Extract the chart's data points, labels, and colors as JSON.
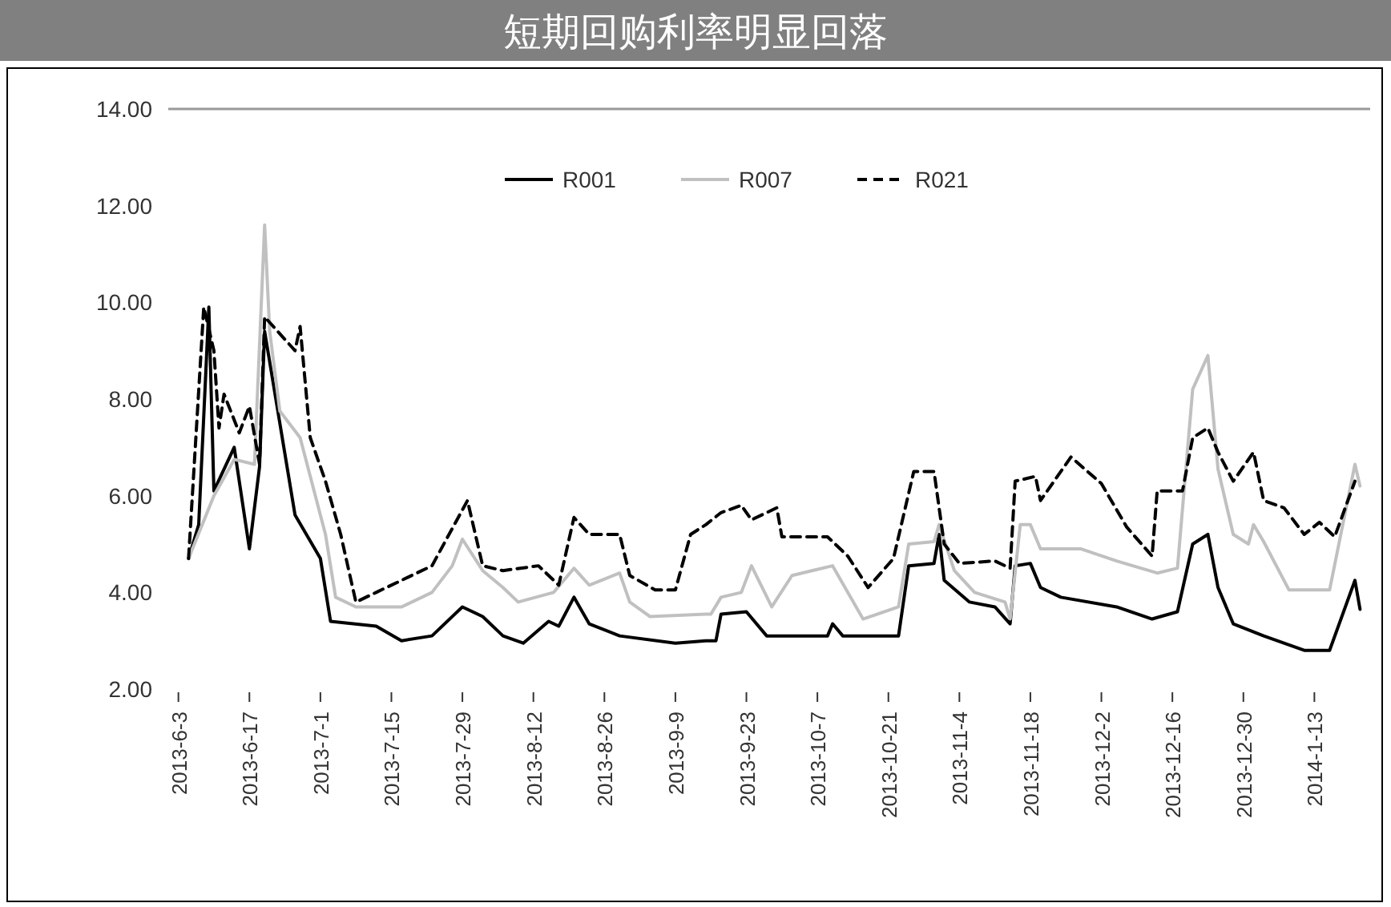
{
  "chart_data": {
    "type": "line",
    "title": "短期回购利率明显回落",
    "legend": "top",
    "grid": false,
    "xlim": [
      "2013-06-01",
      "2014-01-24"
    ],
    "xticks": [
      {
        "value": "2013-06-03",
        "label": "2013-6-3"
      },
      {
        "value": "2013-06-17",
        "label": "2013-6-17"
      },
      {
        "value": "2013-07-01",
        "label": "2013-7-1"
      },
      {
        "value": "2013-07-15",
        "label": "2013-7-15"
      },
      {
        "value": "2013-07-29",
        "label": "2013-7-29"
      },
      {
        "value": "2013-08-12",
        "label": "2013-8-12"
      },
      {
        "value": "2013-08-26",
        "label": "2013-8-26"
      },
      {
        "value": "2013-09-09",
        "label": "2013-9-9"
      },
      {
        "value": "2013-09-23",
        "label": "2013-9-23"
      },
      {
        "value": "2013-10-07",
        "label": "2013-10-7"
      },
      {
        "value": "2013-10-21",
        "label": "2013-10-21"
      },
      {
        "value": "2013-11-04",
        "label": "2013-11-4"
      },
      {
        "value": "2013-11-18",
        "label": "2013-11-18"
      },
      {
        "value": "2013-12-02",
        "label": "2013-12-2"
      },
      {
        "value": "2013-12-16",
        "label": "2013-12-16"
      },
      {
        "value": "2013-12-30",
        "label": "2013-12-30"
      },
      {
        "value": "2014-01-13",
        "label": "2014-1-13"
      }
    ],
    "ylim": [
      2,
      14
    ],
    "yticks": [
      {
        "value": 2,
        "label": "2.00"
      },
      {
        "value": 4,
        "label": "4.00"
      },
      {
        "value": 6,
        "label": "6.00"
      },
      {
        "value": 8,
        "label": "8.00"
      },
      {
        "value": 10,
        "label": "10.00"
      },
      {
        "value": 12,
        "label": "12.00"
      },
      {
        "value": 14,
        "label": "14.00"
      }
    ],
    "series": [
      {
        "name": "R001",
        "color": "#000000",
        "line_style": "solid",
        "x": [
          "2013-06-05",
          "2013-06-07",
          "2013-06-09",
          "2013-06-10",
          "2013-06-14",
          "2013-06-17",
          "2013-06-19",
          "2013-06-20",
          "2013-06-26",
          "2013-07-01",
          "2013-07-03",
          "2013-07-12",
          "2013-07-17",
          "2013-07-23",
          "2013-07-29",
          "2013-08-02",
          "2013-08-06",
          "2013-08-10",
          "2013-08-15",
          "2013-08-17",
          "2013-08-20",
          "2013-08-23",
          "2013-08-29",
          "2013-09-09",
          "2013-09-15",
          "2013-09-17",
          "2013-09-18",
          "2013-09-23",
          "2013-09-27",
          "2013-10-09",
          "2013-10-10",
          "2013-10-12",
          "2013-10-23",
          "2013-10-25",
          "2013-10-30",
          "2013-10-31",
          "2013-11-01",
          "2013-11-06",
          "2013-11-11",
          "2013-11-14",
          "2013-11-15",
          "2013-11-18",
          "2013-11-20",
          "2013-11-24",
          "2013-12-05",
          "2013-12-12",
          "2013-12-17",
          "2013-12-20",
          "2013-12-23",
          "2013-12-25",
          "2013-12-28",
          "2014-01-03",
          "2014-01-11",
          "2014-01-16",
          "2014-01-21",
          "2014-01-22"
        ],
        "values": [
          4.7,
          5.4,
          9.9,
          6.1,
          7.0,
          4.9,
          6.6,
          9.4,
          5.6,
          4.7,
          3.4,
          3.3,
          3.0,
          3.1,
          3.7,
          3.5,
          3.1,
          2.95,
          3.4,
          3.3,
          3.9,
          3.35,
          3.1,
          2.95,
          3.0,
          3.0,
          3.55,
          3.6,
          3.1,
          3.1,
          3.35,
          3.1,
          3.1,
          4.55,
          4.6,
          5.2,
          4.25,
          3.8,
          3.7,
          3.35,
          4.55,
          4.6,
          4.1,
          3.9,
          3.7,
          3.45,
          3.6,
          5.0,
          5.2,
          4.1,
          3.35,
          3.1,
          2.8,
          2.8,
          4.25,
          3.65
        ]
      },
      {
        "name": "R007",
        "color": "#c0c0c0",
        "line_style": "solid",
        "x": [
          "2013-06-05",
          "2013-06-10",
          "2013-06-14",
          "2013-06-18",
          "2013-06-20",
          "2013-06-21",
          "2013-06-23",
          "2013-06-27",
          "2013-07-02",
          "2013-07-04",
          "2013-07-08",
          "2013-07-17",
          "2013-07-23",
          "2013-07-27",
          "2013-07-29",
          "2013-08-02",
          "2013-08-06",
          "2013-08-09",
          "2013-08-16",
          "2013-08-20",
          "2013-08-23",
          "2013-08-29",
          "2013-08-31",
          "2013-09-04",
          "2013-09-15",
          "2013-09-16",
          "2013-09-18",
          "2013-09-22",
          "2013-09-24",
          "2013-09-28",
          "2013-10-02",
          "2013-10-10",
          "2013-10-16",
          "2013-10-23",
          "2013-10-25",
          "2013-10-30",
          "2013-10-31",
          "2013-11-03",
          "2013-11-07",
          "2013-11-13",
          "2013-11-14",
          "2013-11-16",
          "2013-11-18",
          "2013-11-20",
          "2013-11-28",
          "2013-12-05",
          "2013-12-13",
          "2013-12-17",
          "2013-12-20",
          "2013-12-23",
          "2013-12-25",
          "2013-12-28",
          "2013-12-31",
          "2014-01-01",
          "2014-01-03",
          "2014-01-08",
          "2014-01-16",
          "2014-01-21",
          "2014-01-22"
        ],
        "values": [
          4.7,
          6.0,
          6.75,
          6.65,
          11.6,
          9.4,
          7.75,
          7.2,
          5.2,
          3.9,
          3.7,
          3.7,
          4.0,
          4.55,
          5.1,
          4.45,
          4.1,
          3.8,
          4.0,
          4.5,
          4.15,
          4.4,
          3.8,
          3.5,
          3.55,
          3.55,
          3.9,
          4.0,
          4.55,
          3.7,
          4.35,
          4.55,
          3.45,
          3.7,
          5.0,
          5.05,
          5.4,
          4.45,
          4.0,
          3.8,
          3.45,
          5.4,
          5.4,
          4.9,
          4.9,
          4.65,
          4.4,
          4.5,
          8.2,
          8.9,
          6.55,
          5.2,
          5.0,
          5.4,
          5.05,
          4.05,
          4.05,
          6.65,
          6.2
        ]
      },
      {
        "name": "R021",
        "color": "#000000",
        "line_style": "dashed",
        "x": [
          "2013-06-05",
          "2013-06-08",
          "2013-06-10",
          "2013-06-11",
          "2013-06-12",
          "2013-06-15",
          "2013-06-17",
          "2013-06-19",
          "2013-06-20",
          "2013-06-26",
          "2013-06-27",
          "2013-06-29",
          "2013-07-02",
          "2013-07-05",
          "2013-07-08",
          "2013-07-12",
          "2013-07-23",
          "2013-07-30",
          "2013-08-02",
          "2013-08-06",
          "2013-08-13",
          "2013-08-17",
          "2013-08-20",
          "2013-08-23",
          "2013-08-29",
          "2013-08-31",
          "2013-09-05",
          "2013-09-09",
          "2013-09-12",
          "2013-09-15",
          "2013-09-18",
          "2013-09-22",
          "2013-09-24",
          "2013-09-29",
          "2013-09-30",
          "2013-10-09",
          "2013-10-13",
          "2013-10-17",
          "2013-10-22",
          "2013-10-26",
          "2013-10-30",
          "2013-11-01",
          "2013-11-04",
          "2013-11-11",
          "2013-11-14",
          "2013-11-15",
          "2013-11-19",
          "2013-11-20",
          "2013-11-26",
          "2013-12-02",
          "2013-12-07",
          "2013-12-12",
          "2013-12-13",
          "2013-12-18",
          "2013-12-20",
          "2013-12-23",
          "2013-12-25",
          "2013-12-28",
          "2014-01-01",
          "2014-01-03",
          "2014-01-07",
          "2014-01-11",
          "2014-01-14",
          "2014-01-17",
          "2014-01-21"
        ],
        "values": [
          4.7,
          9.9,
          9.0,
          7.4,
          8.1,
          7.3,
          7.85,
          6.65,
          9.7,
          9.0,
          9.5,
          7.2,
          6.3,
          5.2,
          3.8,
          4.0,
          4.55,
          5.9,
          4.55,
          4.45,
          4.55,
          4.15,
          5.55,
          5.2,
          5.2,
          4.35,
          4.05,
          4.05,
          5.2,
          5.4,
          5.65,
          5.8,
          5.5,
          5.75,
          5.15,
          5.15,
          4.75,
          4.1,
          4.7,
          6.5,
          6.5,
          5.0,
          4.6,
          4.65,
          4.5,
          6.3,
          6.4,
          5.9,
          6.8,
          6.25,
          5.35,
          4.75,
          6.1,
          6.1,
          7.2,
          7.4,
          6.9,
          6.3,
          6.9,
          5.9,
          5.75,
          5.2,
          5.45,
          5.15,
          6.3
        ]
      }
    ]
  }
}
